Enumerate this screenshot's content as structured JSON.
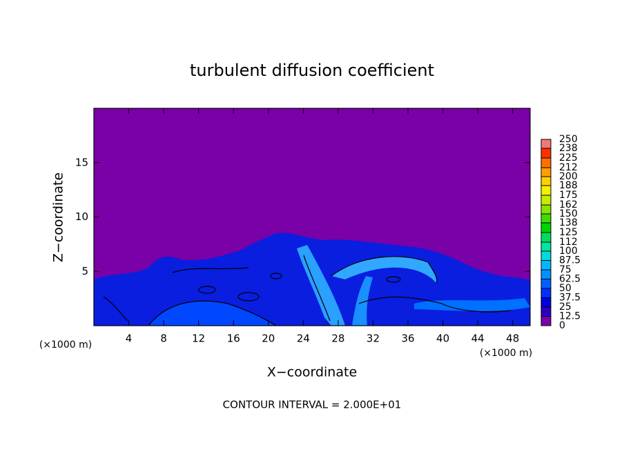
{
  "chart_data": {
    "type": "contour",
    "title": "turbulent diffusion coefficient",
    "xlabel": "X−coordinate",
    "ylabel": "Z−coordinate",
    "x_unit_label": "(×1000 m)",
    "annotation": "CONTOUR INTERVAL = 2.000E+01",
    "xlim": [
      0,
      50
    ],
    "xticks": [
      4,
      8,
      12,
      16,
      20,
      24,
      28,
      32,
      36,
      40,
      44,
      48
    ],
    "ylim": [
      0,
      20
    ],
    "yticks": [
      5,
      10,
      15
    ],
    "colorbar": {
      "levels": [
        0,
        12.5,
        25,
        37.5,
        50,
        62.5,
        75,
        87.5,
        100,
        112,
        125,
        138,
        150,
        162,
        175,
        188,
        200,
        212,
        225,
        238,
        250
      ],
      "colors": [
        "#7a00a8",
        "#2c00c4",
        "#0000e0",
        "#0030ff",
        "#0060ff",
        "#0090ff",
        "#00b8ff",
        "#00dcdc",
        "#00e6a0",
        "#00dc60",
        "#00d400",
        "#40dc00",
        "#88e400",
        "#c8ec00",
        "#f0f000",
        "#ffd000",
        "#ffa000",
        "#ff7000",
        "#ff3000",
        "#f07878"
      ]
    }
  }
}
